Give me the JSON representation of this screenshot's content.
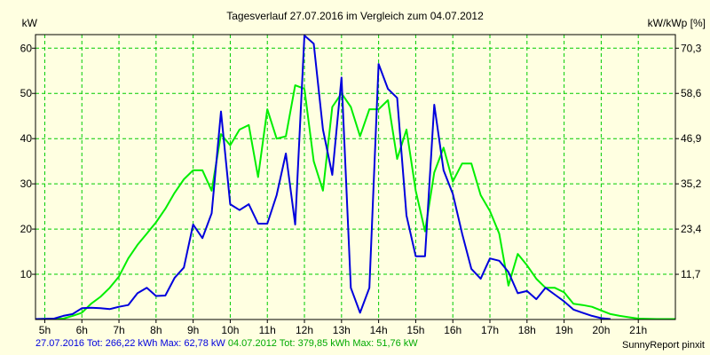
{
  "chart_data": {
    "type": "line",
    "title": "Tagesverlauf 27.07.2016 im Vergleich zum 04.07.2012",
    "ylabel_left": "kW",
    "ylabel_right": "kW/kWp [%]",
    "xlim": [
      4.75,
      22.0
    ],
    "ylim": [
      0,
      63
    ],
    "x_ticks": [
      5,
      6,
      7,
      8,
      9,
      10,
      11,
      12,
      13,
      14,
      15,
      16,
      17,
      18,
      19,
      20,
      21
    ],
    "x_tick_labels": [
      "5h",
      "6h",
      "7h",
      "8h",
      "9h",
      "10h",
      "11h",
      "12h",
      "13h",
      "14h",
      "15h",
      "16h",
      "17h",
      "18h",
      "19h",
      "20h",
      "21h"
    ],
    "y_ticks": [
      10,
      20,
      30,
      40,
      50,
      60
    ],
    "y_right_ticks": [
      10,
      20,
      30,
      40,
      50,
      60
    ],
    "y_right_tick_labels": [
      "11,7",
      "23,4",
      "35,2",
      "46,9",
      "58,6",
      "70,3"
    ],
    "grid": true,
    "colors": {
      "background": "#ffffe1",
      "grid": "#00cc00",
      "series_2016": "#0000dd",
      "series_2012": "#00ee00"
    },
    "series": [
      {
        "name": "27.07.2016",
        "x": [
          4.75,
          5.25,
          5.5,
          5.75,
          6.0,
          6.25,
          6.5,
          6.75,
          7.0,
          7.25,
          7.5,
          7.75,
          8.0,
          8.25,
          8.5,
          8.75,
          9.0,
          9.25,
          9.5,
          9.75,
          10.0,
          10.25,
          10.5,
          10.75,
          11.0,
          11.25,
          11.5,
          11.75,
          12.0,
          12.25,
          12.5,
          12.75,
          13.0,
          13.25,
          13.5,
          13.75,
          14.0,
          14.25,
          14.5,
          14.75,
          15.0,
          15.25,
          15.5,
          15.75,
          16.0,
          16.25,
          16.5,
          16.75,
          17.0,
          17.25,
          17.5,
          17.75,
          18.0,
          18.25,
          18.5,
          18.75,
          19.0,
          19.25,
          19.5,
          19.75,
          20.0,
          20.25
        ],
        "y": [
          0.1,
          0.2,
          0.8,
          1.2,
          2.5,
          2.6,
          2.5,
          2.3,
          2.8,
          3.2,
          5.8,
          7.0,
          5.2,
          5.3,
          9.2,
          11.5,
          21.0,
          18.0,
          23.5,
          46.0,
          25.5,
          24.2,
          25.5,
          21.2,
          21.2,
          27.5,
          36.7,
          21.0,
          62.8,
          61.0,
          42.0,
          32.0,
          53.5,
          7.0,
          1.5,
          7.0,
          56.5,
          51.0,
          49.0,
          23.0,
          14.0,
          14.0,
          47.5,
          33.0,
          27.8,
          19.0,
          11.2,
          9.0,
          13.5,
          13.0,
          10.5,
          5.8,
          6.3,
          4.5,
          7.0,
          5.5,
          4.0,
          2.2,
          1.5,
          0.8,
          0.3,
          0.1
        ]
      },
      {
        "name": "04.07.2012",
        "x": [
          4.75,
          5.5,
          5.75,
          6.0,
          6.25,
          6.5,
          6.75,
          7.0,
          7.25,
          7.5,
          7.75,
          8.0,
          8.25,
          8.5,
          8.75,
          9.0,
          9.25,
          9.5,
          9.75,
          10.0,
          10.25,
          10.5,
          10.75,
          11.0,
          11.25,
          11.5,
          11.75,
          12.0,
          12.25,
          12.5,
          12.75,
          13.0,
          13.25,
          13.5,
          13.75,
          14.0,
          14.25,
          14.5,
          14.75,
          15.0,
          15.25,
          15.5,
          15.75,
          16.0,
          16.25,
          16.5,
          16.75,
          17.0,
          17.25,
          17.5,
          17.75,
          18.0,
          18.25,
          18.5,
          18.75,
          19.0,
          19.25,
          19.5,
          19.75,
          20.0,
          20.25,
          20.5,
          20.75,
          21.0,
          21.5,
          22.0
        ],
        "y": [
          0.1,
          0.2,
          0.8,
          1.5,
          3.5,
          5.0,
          7.0,
          9.5,
          13.5,
          16.5,
          19.0,
          21.5,
          24.5,
          28.0,
          31.0,
          33.0,
          33.0,
          28.5,
          41.0,
          38.5,
          42.0,
          43.0,
          31.5,
          46.5,
          40.0,
          40.5,
          51.8,
          51.0,
          35.0,
          28.5,
          47.0,
          50.0,
          47.0,
          40.5,
          46.5,
          46.5,
          48.5,
          35.5,
          42.0,
          28.5,
          19.5,
          32.5,
          38.0,
          30.5,
          34.5,
          34.5,
          27.5,
          24.0,
          19.0,
          7.5,
          14.5,
          12.0,
          9.0,
          7.0,
          7.0,
          6.0,
          3.5,
          3.2,
          2.8,
          2.0,
          1.2,
          0.8,
          0.5,
          0.2,
          0.1,
          0.1
        ]
      }
    ]
  },
  "footer": {
    "series1_label": "27.07.2016 Tot: 266,22 kWh Max: 62,78 kW",
    "series2_label": "04.07.2012 Tot: 379,85 kWh Max: 51,76 kW",
    "credit": "SunnyReport pinxit"
  }
}
